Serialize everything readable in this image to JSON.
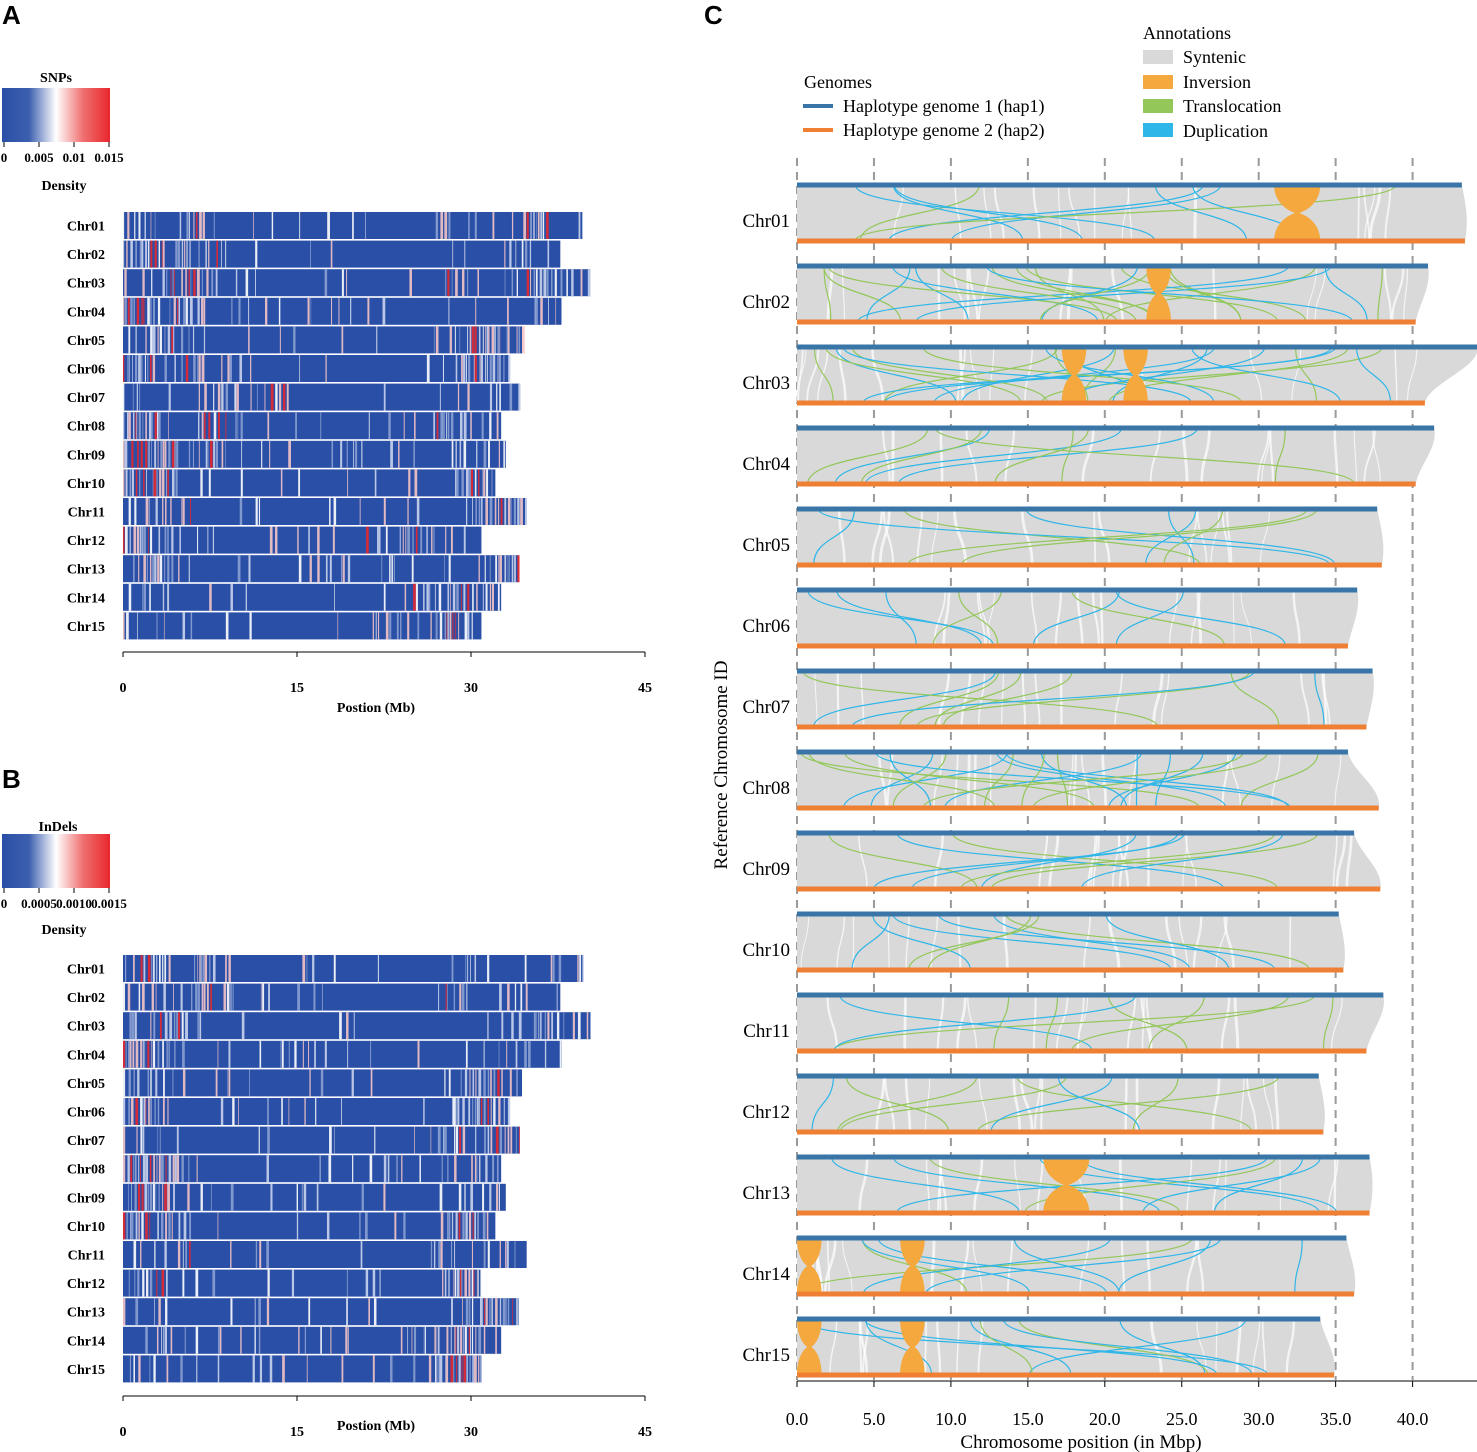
{
  "panels": {
    "a": {
      "label": "A"
    },
    "b": {
      "label": "B"
    },
    "c": {
      "label": "C"
    }
  },
  "chart_data": [
    {
      "type": "heatmap",
      "panel": "A",
      "title": "SNPs",
      "colorbar_label": "Density",
      "colorbar_ticks": [
        "0",
        "0.005",
        "0.01",
        "0.015"
      ],
      "colorbar_range": [
        0,
        0.015
      ],
      "colors": {
        "low": "#2a4fa6",
        "mid": "#ffffff",
        "high": "#e8262c"
      },
      "chromosomes": [
        "Chr01",
        "Chr02",
        "Chr03",
        "Chr04",
        "Chr05",
        "Chr06",
        "Chr07",
        "Chr08",
        "Chr09",
        "Chr10",
        "Chr11",
        "Chr12",
        "Chr13",
        "Chr14",
        "Chr15"
      ],
      "lengths_mb": [
        39.6,
        37.7,
        40.3,
        37.8,
        34.4,
        33.3,
        34.2,
        32.6,
        33.0,
        32.1,
        34.8,
        30.9,
        34.1,
        32.6,
        30.9
      ],
      "hotspots_mb": [
        [
          6.5,
          28,
          35.5
        ],
        [
          2,
          6.8
        ],
        [
          5.5,
          29,
          36
        ],
        [
          0.5,
          1,
          5.8
        ],
        [
          4,
          30,
          32
        ],
        [
          1,
          5,
          31
        ],
        [
          9,
          14
        ],
        [
          1.5,
          8,
          27
        ],
        [
          2,
          3.5,
          7
        ],
        [
          0.6,
          3,
          30
        ],
        [
          5,
          32,
          34
        ],
        [
          1.2,
          22,
          24
        ],
        [
          3,
          18,
          33
        ],
        [
          26,
          29
        ],
        [
          22,
          28
        ]
      ],
      "xlabel": "Postion (Mb)",
      "xticks": [
        0,
        15,
        30,
        45
      ],
      "xlim": [
        0,
        45
      ]
    },
    {
      "type": "heatmap",
      "panel": "B",
      "title": "InDels",
      "colorbar_label": "Density",
      "colorbar_ticks": [
        "0",
        "0.0005",
        "0.0010",
        "0.0015"
      ],
      "colorbar_range": [
        0,
        0.0015
      ],
      "colors": {
        "low": "#2a4fa6",
        "mid": "#ffffff",
        "high": "#e8262c"
      },
      "chromosomes": [
        "Chr01",
        "Chr02",
        "Chr03",
        "Chr04",
        "Chr05",
        "Chr06",
        "Chr07",
        "Chr08",
        "Chr09",
        "Chr10",
        "Chr11",
        "Chr12",
        "Chr13",
        "Chr14",
        "Chr15"
      ],
      "lengths_mb": [
        39.6,
        37.7,
        40.3,
        37.8,
        34.4,
        33.3,
        34.2,
        32.6,
        33.0,
        32.1,
        34.8,
        30.9,
        34.1,
        32.6,
        30.9
      ],
      "hotspots_mb": [
        [
          3,
          6.5,
          30
        ],
        [
          6.8,
          29
        ],
        [
          4.5,
          35
        ],
        [
          0.6,
          2,
          4
        ],
        [
          30,
          31
        ],
        [
          1,
          30.5,
          31
        ],
        [
          28,
          33
        ],
        [
          1,
          3,
          4
        ],
        [
          1.5,
          2.5,
          3.5
        ],
        [
          1,
          3.7,
          29
        ],
        [
          5,
          28
        ],
        [
          2,
          29.5
        ],
        [
          31,
          32.5
        ],
        [
          26,
          29
        ],
        [
          29,
          30
        ]
      ],
      "xlabel": "Postion (Mb)",
      "xticks": [
        0,
        15,
        30,
        45
      ],
      "xlim": [
        0,
        45
      ]
    },
    {
      "type": "synteny",
      "panel": "C",
      "legend_genomes_title": "Genomes",
      "genomes": [
        {
          "name": "Haplotype genome 1 (hap1)",
          "color": "#3a75a8"
        },
        {
          "name": "Haplotype genome 2 (hap2)",
          "color": "#ef7f33"
        }
      ],
      "legend_annotations_title": "Annotations",
      "annotations": [
        {
          "name": "Syntenic",
          "color": "#d9d9d9"
        },
        {
          "name": "Inversion",
          "color": "#f4a83d"
        },
        {
          "name": "Translocation",
          "color": "#93c75a"
        },
        {
          "name": "Duplication",
          "color": "#2fb6e8"
        }
      ],
      "chromosomes": [
        "Chr01",
        "Chr02",
        "Chr03",
        "Chr04",
        "Chr05",
        "Chr06",
        "Chr07",
        "Chr08",
        "Chr09",
        "Chr10",
        "Chr11",
        "Chr12",
        "Chr13",
        "Chr14",
        "Chr15"
      ],
      "hap1_lengths_mbp": [
        43.2,
        41.0,
        44.2,
        41.4,
        37.7,
        36.4,
        37.4,
        35.8,
        36.2,
        35.2,
        38.1,
        33.9,
        37.2,
        35.7,
        34.0
      ],
      "hap2_lengths_mbp": [
        43.4,
        40.2,
        40.8,
        40.2,
        38.0,
        35.8,
        37.0,
        37.8,
        37.9,
        35.5,
        37.0,
        34.2,
        37.2,
        36.2,
        34.9
      ],
      "inversions_mbp": [
        [
          32.5
        ],
        [
          23.5
        ],
        [
          18,
          22
        ],
        [],
        [],
        [],
        [],
        [],
        [],
        [],
        [],
        [],
        [
          17.5
        ],
        [
          0.8,
          7.5
        ],
        [
          0.8,
          7.5
        ]
      ],
      "xlabel": "Chromosome position (in Mbp)",
      "ylabel": "Reference Chromosome ID",
      "xticks": [
        "0.0",
        "5.0",
        "10.0",
        "15.0",
        "20.0",
        "25.0",
        "30.0",
        "35.0",
        "40.0"
      ],
      "xlim": [
        0,
        44.2
      ]
    }
  ]
}
